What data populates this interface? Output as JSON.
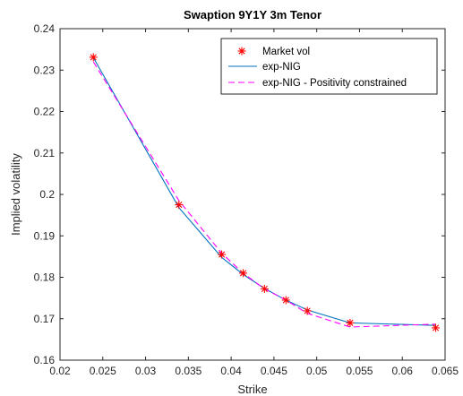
{
  "chart_data": {
    "type": "line",
    "title": "Swaption 9Y1Y 3m Tenor",
    "xlabel": "Strike",
    "ylabel": "Implied volatility",
    "xlim": [
      0.02,
      0.065
    ],
    "ylim": [
      0.16,
      0.24
    ],
    "xticks": [
      "0.02",
      "0.025",
      "0.03",
      "0.035",
      "0.04",
      "0.045",
      "0.05",
      "0.055",
      "0.06",
      "0.065"
    ],
    "yticks": [
      "0.16",
      "0.17",
      "0.18",
      "0.19",
      "0.2",
      "0.21",
      "0.22",
      "0.23",
      "0.24"
    ],
    "grid": false,
    "legend_position": "top-right",
    "series": [
      {
        "name": "Market vol",
        "style": "markers",
        "marker": "asterisk",
        "color": "#ff0000",
        "x": [
          0.0239,
          0.0339,
          0.0389,
          0.0414,
          0.0439,
          0.0464,
          0.0489,
          0.0539,
          0.0639
        ],
        "y": [
          0.2331,
          0.1975,
          0.1855,
          0.181,
          0.1772,
          0.1745,
          0.1719,
          0.169,
          0.1678
        ]
      },
      {
        "name": "exp-NIG",
        "style": "solid",
        "color": "#0072bd",
        "x": [
          0.0239,
          0.0339,
          0.0389,
          0.0414,
          0.0439,
          0.0464,
          0.0489,
          0.0539,
          0.0639
        ],
        "y": [
          0.233,
          0.1968,
          0.1848,
          0.1807,
          0.1773,
          0.1745,
          0.1721,
          0.169,
          0.1684
        ]
      },
      {
        "name": "exp-NIG - Positivity constrained",
        "style": "dashed",
        "color": "#ff00ff",
        "x": [
          0.0239,
          0.0339,
          0.0389,
          0.0414,
          0.0439,
          0.0464,
          0.0489,
          0.0539,
          0.0639
        ],
        "y": [
          0.232,
          0.1985,
          0.1858,
          0.181,
          0.1772,
          0.1745,
          0.1713,
          0.168,
          0.1687
        ]
      }
    ]
  }
}
